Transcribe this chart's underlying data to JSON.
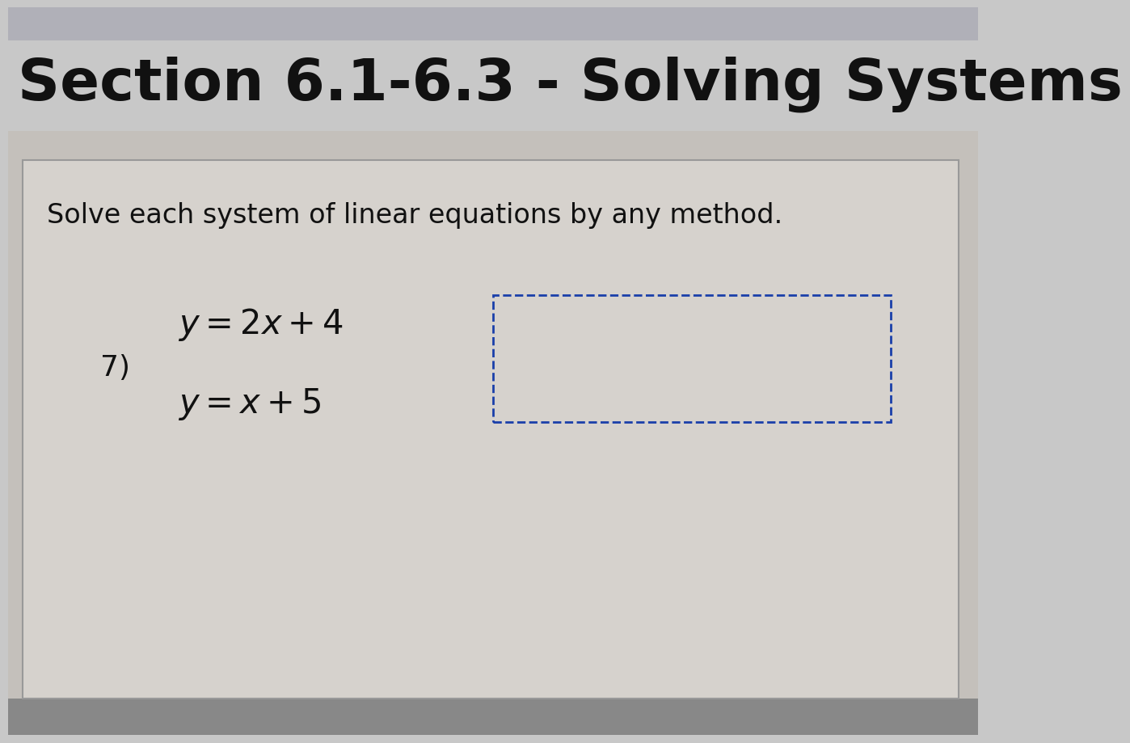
{
  "title": "Section 6.1-6.3 - Solving Systems",
  "title_fontsize": 52,
  "title_color": "#111111",
  "bg_color": "#c8c8c8",
  "browser_bar_color": "#aaaaaa",
  "title_bg_color": "#cccccc",
  "card_bg": "#d8d4cf",
  "card_edge_color": "#999999",
  "instruction_text": "Solve each system of linear equations by any method.",
  "instruction_fontsize": 24,
  "problem_number": "7)",
  "eq1": "$y = 2x + 4$",
  "eq2": "$y = x + 5$",
  "eq_fontsize": 30,
  "num_fontsize": 26,
  "box_color": "#1a3faa",
  "text_color": "#111111"
}
